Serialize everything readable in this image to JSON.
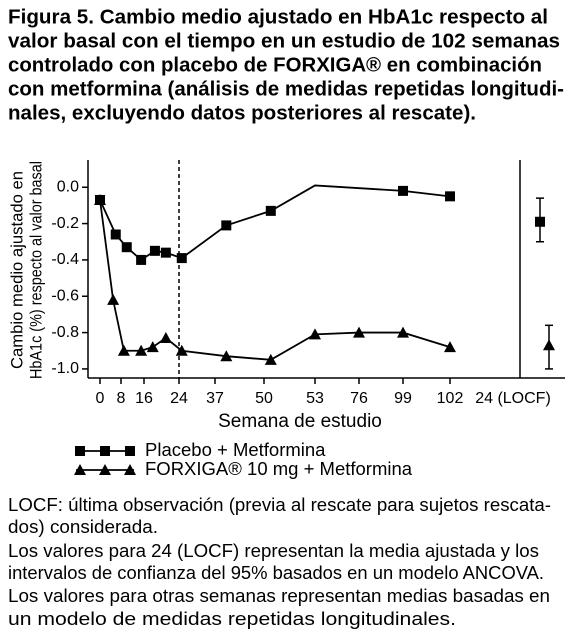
{
  "chart_data": {
    "type": "line",
    "title_lines": [
      "Figura 5. Cambio medio ajustado en HbA1c respecto al",
      "valor basal con el tiempo en un estudio de 102 semanas",
      "controlado con placebo de FORXIGA® en combinación",
      "con metformina (análisis de medidas repetidas longitudi-",
      "nales, excluyendo datos posteriores al rescate)."
    ],
    "y_label_lines": [
      "Cambio medio ajustado en",
      "HbA1c (%) respecto al valor basal"
    ],
    "x_label": "Semana de estudio",
    "xticks": [
      0,
      8,
      16,
      24,
      37,
      50,
      53,
      76,
      99,
      102
    ],
    "locf_tick_label": "24 (LOCF)",
    "ylim": [
      -1.05,
      0.15
    ],
    "yticks": [
      {
        "value": 0,
        "label": "0.0"
      },
      -0.2,
      -0.4,
      -0.6,
      -0.8,
      {
        "value": -1,
        "label": "-1.0"
      }
    ],
    "reference_line_x": 24,
    "series": [
      {
        "name": "Placebo + Metformina",
        "marker": "square",
        "color": "#000000",
        "x": [
          0,
          6,
          10,
          15,
          18.5,
          21,
          25,
          40,
          50.4,
          53,
          99,
          102
        ],
        "values": [
          -0.07,
          -0.26,
          -0.33,
          -0.4,
          -0.35,
          -0.36,
          -0.39,
          -0.21,
          -0.13,
          0.01,
          -0.02,
          -0.05
        ],
        "locf": {
          "value": -0.19,
          "lower": -0.3,
          "upper": -0.06
        }
      },
      {
        "name": "FORXIGA® 10 mg + Metformina",
        "marker": "triangle",
        "color": "#000000",
        "x": [
          0,
          5,
          9,
          15,
          18,
          21,
          25,
          40,
          50.4,
          53,
          76,
          99,
          102
        ],
        "values": [
          -0.07,
          -0.62,
          -0.9,
          -0.9,
          -0.88,
          -0.83,
          -0.9,
          -0.93,
          -0.95,
          -0.81,
          -0.8,
          -0.8,
          -0.88
        ],
        "locf": {
          "value": -0.87,
          "lower": -1.0,
          "upper": -0.76
        }
      }
    ],
    "notes": [
      "LOCF: última observación (previa al rescate para sujetos rescata-",
      "dos) considerada.",
      "Los valores para 24 (LOCF) representan la media ajustada y los",
      "intervalos de confianza del 95% basados en un modelo ANCOVA.",
      "Los valores para otras semanas representan medias basadas en",
      "un modelo de medidas repetidas longitudinales."
    ]
  }
}
